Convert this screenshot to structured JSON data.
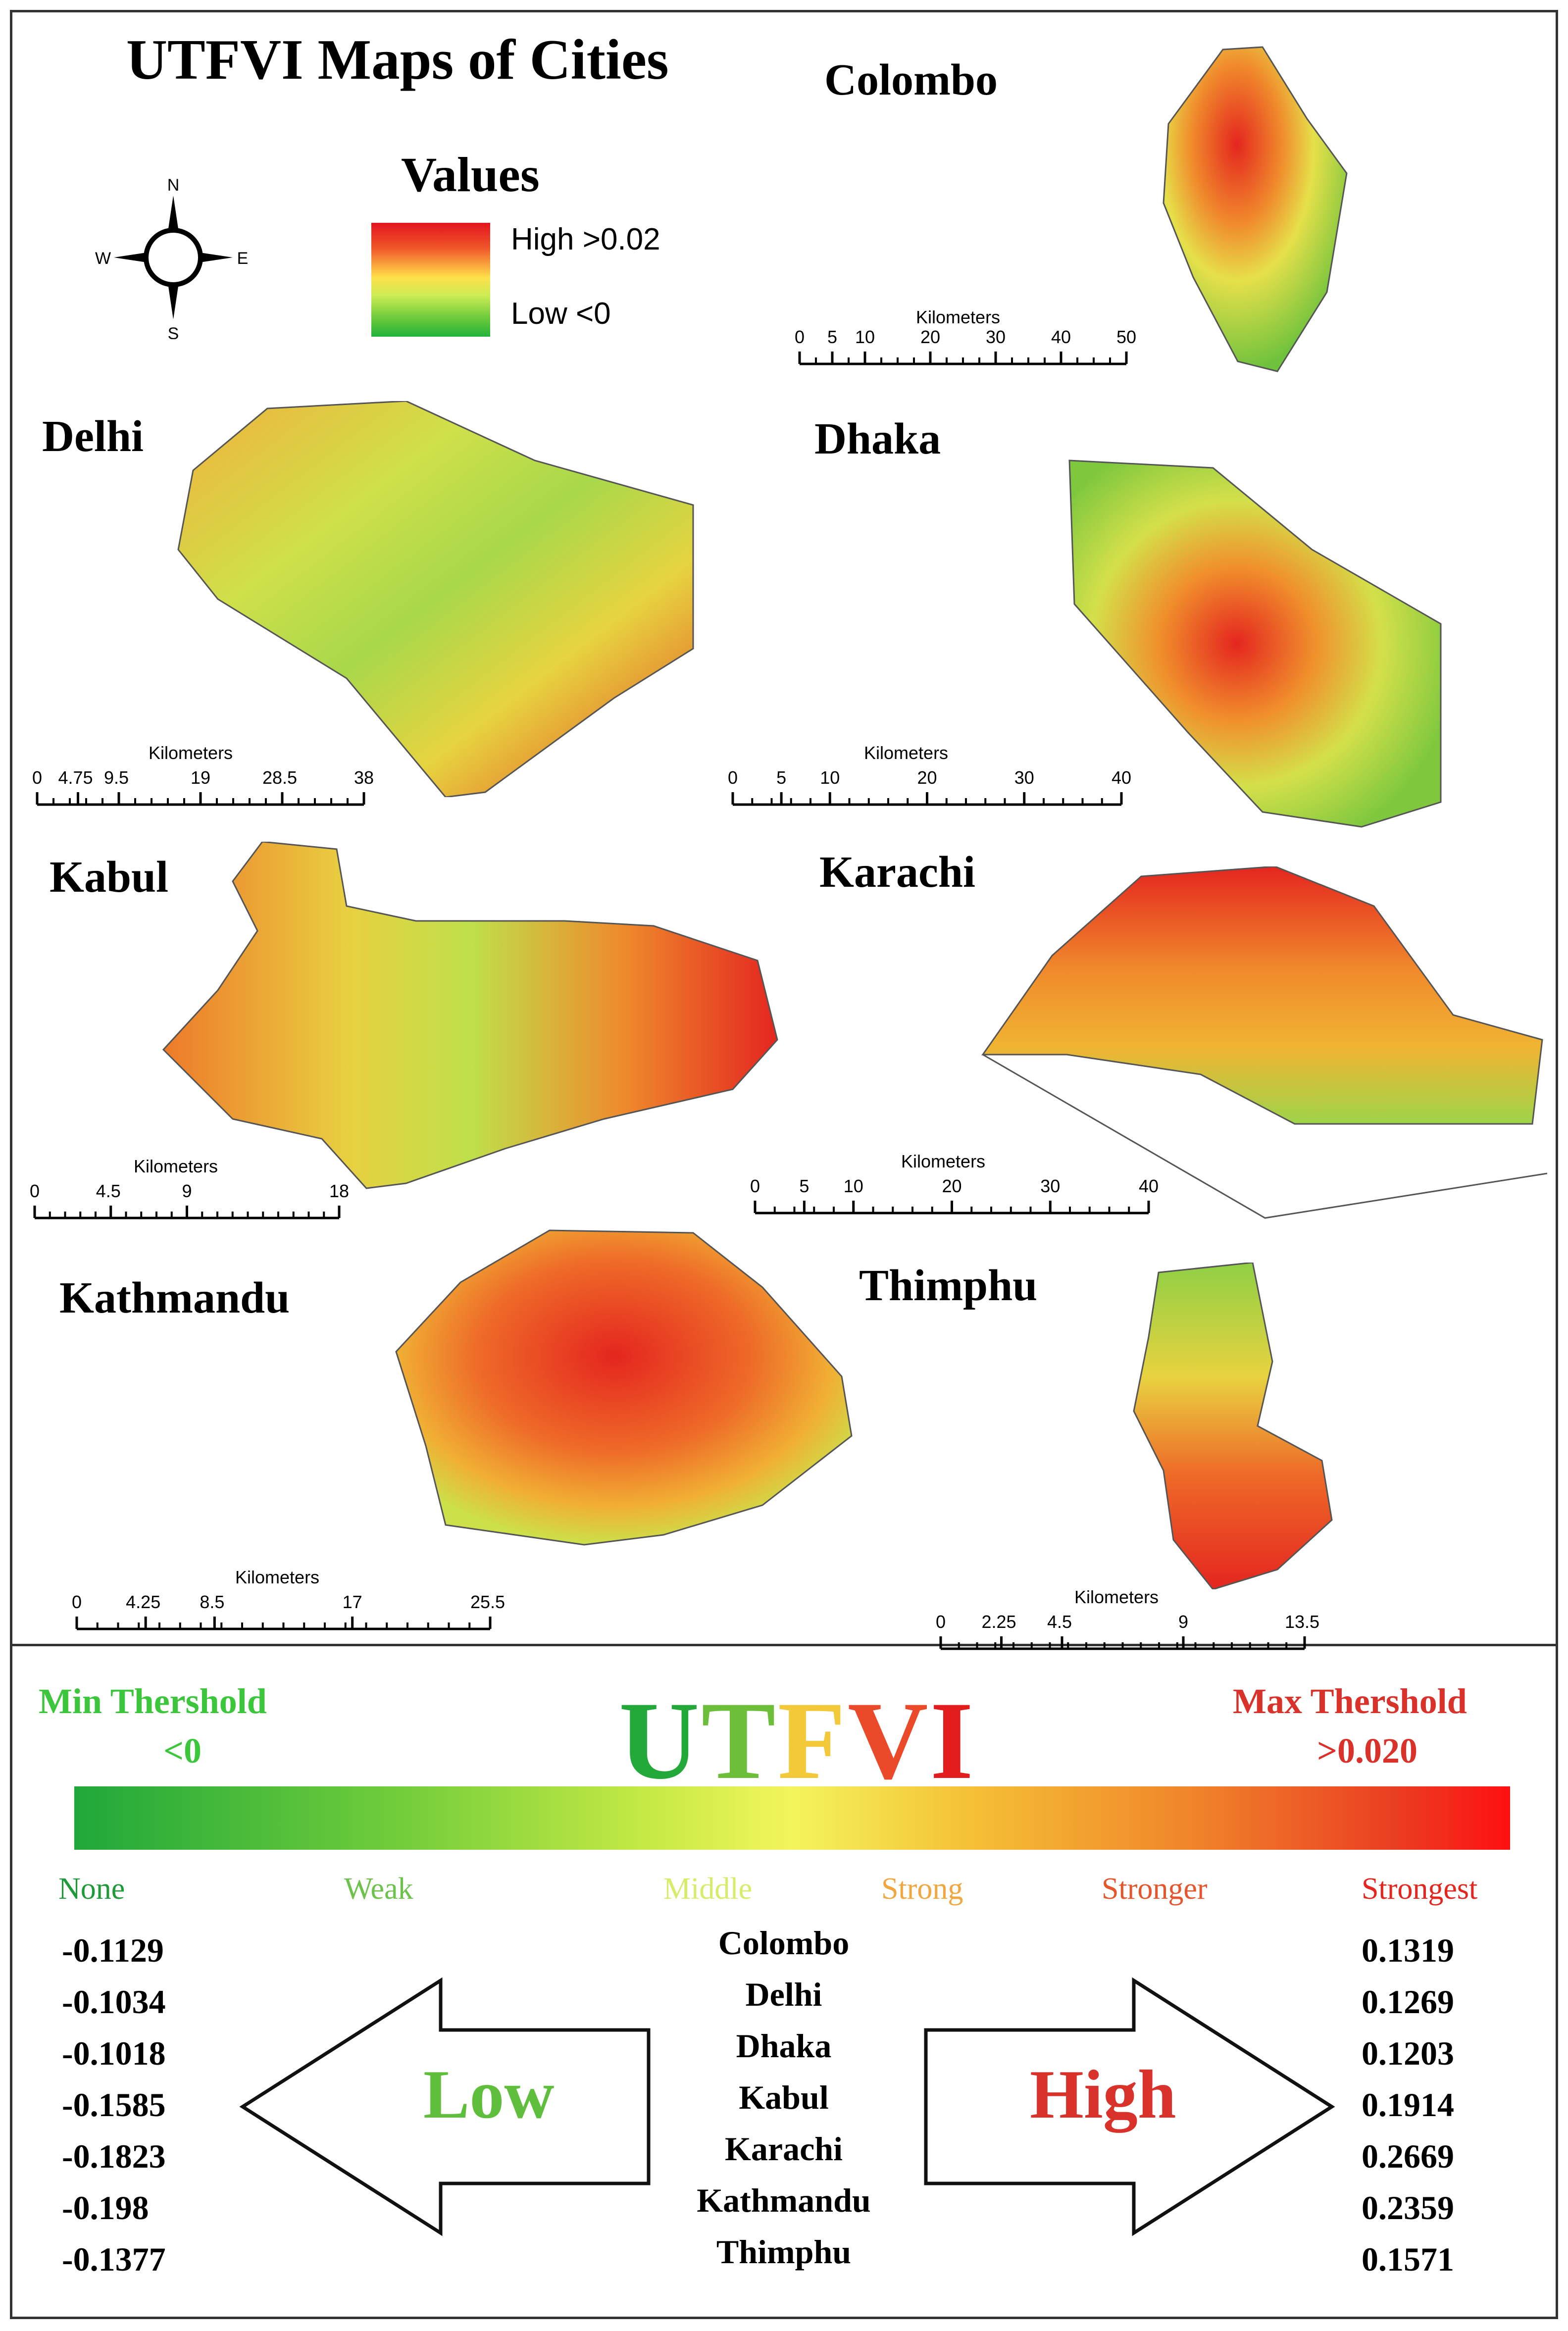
{
  "title": "UTFVI Maps of Cities",
  "compass": {
    "n": "N",
    "s": "S",
    "e": "E",
    "w": "W"
  },
  "legend": {
    "heading": "Values",
    "high_label": "High >0.02",
    "low_label": "Low <0",
    "ramp_colors": [
      "#e3141d",
      "#f0552a",
      "#ffe04a",
      "#ccec55",
      "#22b33a"
    ]
  },
  "maps": [
    {
      "name": "Colombo",
      "scale_unit": "Kilometers",
      "scale_ticks": [
        "0",
        "5",
        "10",
        "20",
        "30",
        "40",
        "50"
      ]
    },
    {
      "name": "Delhi",
      "scale_unit": "Kilometers",
      "scale_ticks": [
        "0",
        "4.75",
        "9.5",
        "19",
        "28.5",
        "38"
      ]
    },
    {
      "name": "Dhaka",
      "scale_unit": "Kilometers",
      "scale_ticks": [
        "0",
        "5",
        "10",
        "20",
        "30",
        "40"
      ]
    },
    {
      "name": "Kabul",
      "scale_unit": "Kilometers",
      "scale_ticks": [
        "0",
        "4.5",
        "9",
        "18"
      ]
    },
    {
      "name": "Karachi",
      "scale_unit": "Kilometers",
      "scale_ticks": [
        "0",
        "5",
        "10",
        "20",
        "30",
        "40"
      ]
    },
    {
      "name": "Kathmandu",
      "scale_unit": "Kilometers",
      "scale_ticks": [
        "0",
        "4.25",
        "8.5",
        "17",
        "25.5"
      ]
    },
    {
      "name": "Thimphu",
      "scale_unit": "Kilometers",
      "scale_ticks": [
        "0",
        "2.25",
        "4.5",
        "9",
        "13.5"
      ]
    }
  ],
  "utfvi_scale": {
    "title_letters": [
      {
        "ch": "U",
        "color": "#23a83a"
      },
      {
        "ch": "T",
        "color": "#6dbf3a"
      },
      {
        "ch": "F",
        "color": "#f3c93a"
      },
      {
        "ch": "V",
        "color": "#ea4a2a"
      },
      {
        "ch": "I",
        "color": "#e31d1d"
      }
    ],
    "min_label": "Min Thershold",
    "min_value": "<0",
    "max_label": "Max Thershold",
    "max_value": ">0.020",
    "classes": [
      {
        "label": "None",
        "color": "#1f9a3a"
      },
      {
        "label": "Weak",
        "color": "#6cc24a"
      },
      {
        "label": "Middle",
        "color": "#d8ec6a"
      },
      {
        "label": "Strong",
        "color": "#f2a640"
      },
      {
        "label": "Stronger",
        "color": "#e5562c"
      },
      {
        "label": "Strongest",
        "color": "#e4261f"
      }
    ]
  },
  "summary": {
    "low_word": "Low",
    "high_word": "High",
    "rows": [
      {
        "city": "Colombo",
        "min": "-0.1129",
        "max": "0.1319"
      },
      {
        "city": "Delhi",
        "min": "-0.1034",
        "max": "0.1269"
      },
      {
        "city": "Dhaka",
        "min": "-0.1018",
        "max": "0.1203"
      },
      {
        "city": "Kabul",
        "min": "-0.1585",
        "max": "0.1914"
      },
      {
        "city": "Karachi",
        "min": "-0.1823",
        "max": "0.2669"
      },
      {
        "city": "Kathmandu",
        "min": "-0.198",
        "max": "0.2359"
      },
      {
        "city": "Thimphu",
        "min": "-0.1377",
        "max": "0.1571"
      }
    ]
  }
}
